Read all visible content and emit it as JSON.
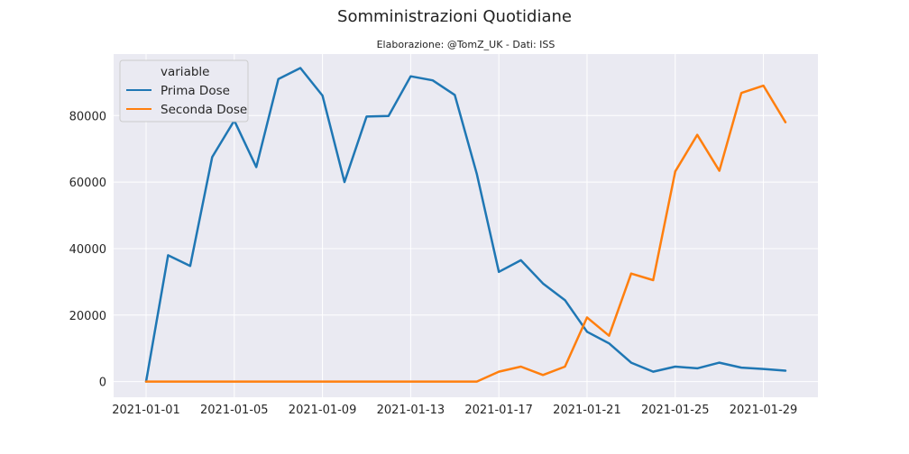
{
  "chart_data": {
    "type": "line",
    "title": "Somministrazioni Quotidiane",
    "subtitle": "Elaborazione: @TomZ_UK - Dati: ISS",
    "xlabel": "",
    "ylabel": "",
    "x": [
      "2021-01-01",
      "2021-01-02",
      "2021-01-03",
      "2021-01-04",
      "2021-01-05",
      "2021-01-06",
      "2021-01-07",
      "2021-01-08",
      "2021-01-09",
      "2021-01-10",
      "2021-01-11",
      "2021-01-12",
      "2021-01-13",
      "2021-01-14",
      "2021-01-15",
      "2021-01-16",
      "2021-01-17",
      "2021-01-18",
      "2021-01-19",
      "2021-01-20",
      "2021-01-21",
      "2021-01-22",
      "2021-01-23",
      "2021-01-24",
      "2021-01-25",
      "2021-01-26",
      "2021-01-27",
      "2021-01-28",
      "2021-01-29",
      "2021-01-30"
    ],
    "x_ticks": [
      "2021-01-01",
      "2021-01-05",
      "2021-01-09",
      "2021-01-13",
      "2021-01-17",
      "2021-01-21",
      "2021-01-25",
      "2021-01-29"
    ],
    "y_ticks": [
      0,
      20000,
      40000,
      60000,
      80000
    ],
    "ylim": [
      -4700,
      98500
    ],
    "grid": true,
    "legend": {
      "title": "variable",
      "position": "top-left"
    },
    "series": [
      {
        "name": "Prima Dose",
        "color": "#1f77b4",
        "values": [
          0,
          38000,
          34800,
          67500,
          78500,
          64500,
          91000,
          94300,
          86000,
          60000,
          79700,
          79900,
          91800,
          90600,
          86200,
          62500,
          33000,
          36500,
          29500,
          24500,
          15000,
          11500,
          5700,
          3000,
          4500,
          4000,
          5700,
          4200,
          3800,
          3300
        ]
      },
      {
        "name": "Seconda Dose",
        "color": "#ff7f0e",
        "values": [
          0,
          0,
          0,
          0,
          0,
          0,
          0,
          0,
          0,
          0,
          0,
          0,
          0,
          0,
          0,
          0,
          3000,
          4500,
          2000,
          4500,
          19300,
          13800,
          32500,
          30500,
          63200,
          74200,
          63400,
          86800,
          89000,
          78000
        ]
      }
    ]
  }
}
